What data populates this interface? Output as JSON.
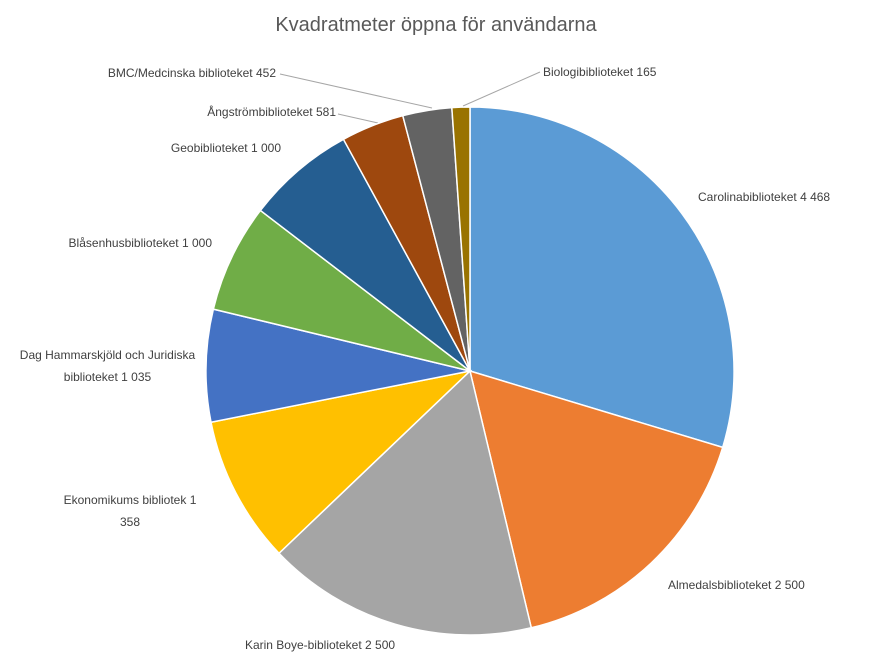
{
  "chart_data": {
    "type": "pie",
    "title": "Kvadratmeter öppna för användarna",
    "categories": [
      "Carolinabiblioteket",
      "Almedalsbiblioteket",
      "Karin Boye-biblioteket",
      "Ekonomikums bibliotek",
      "Dag Hammarskjöld och Juridiska biblioteket",
      "Blåsenhusbiblioteket",
      "Geobiblioteket",
      "Ångströmbiblioteket",
      "BMC/Medcinska biblioteket",
      "Biologibiblioteket"
    ],
    "values": [
      4468,
      2500,
      2500,
      1358,
      1035,
      1000,
      1000,
      581,
      452,
      165
    ],
    "value_labels": [
      "4 468",
      "2 500",
      "2 500",
      "1 358",
      "1 035",
      "1 000",
      "1 000",
      "581",
      "452",
      "165"
    ],
    "colors": [
      "#5b9bd5",
      "#ed7d31",
      "#a5a5a5",
      "#ffc000",
      "#4472c4",
      "#70ad47",
      "#255e91",
      "#9e480e",
      "#636363",
      "#997300"
    ]
  }
}
